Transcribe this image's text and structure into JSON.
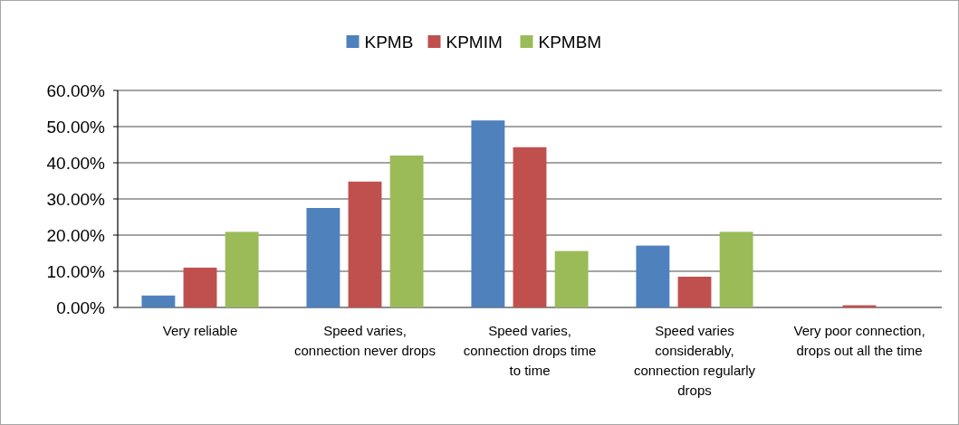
{
  "chart_data": {
    "type": "bar",
    "categories": [
      "Very reliable",
      "Speed varies, connection never drops",
      "Speed varies, connection drops time to time",
      "Speed varies considerably, connection regularly drops",
      "Very poor connection, drops out all the time"
    ],
    "series": [
      {
        "name": "KPMB",
        "color": "#4f81bd",
        "values": [
          3.3,
          27.5,
          51.7,
          17.1,
          0
        ]
      },
      {
        "name": "KPMIM",
        "color": "#c0504d",
        "values": [
          11.0,
          34.8,
          44.3,
          8.5,
          0.6
        ]
      },
      {
        "name": "KPMBM",
        "color": "#9bbb59",
        "values": [
          20.9,
          42.0,
          15.6,
          20.9,
          0
        ]
      }
    ],
    "ylim": [
      0,
      60
    ],
    "yticks": [
      {
        "value": 0,
        "label": "0.00%"
      },
      {
        "value": 10,
        "label": "10.00%"
      },
      {
        "value": 20,
        "label": "20.00%"
      },
      {
        "value": 30,
        "label": "30.00%"
      },
      {
        "value": 40,
        "label": "40.00%"
      },
      {
        "value": 50,
        "label": "50.00%"
      },
      {
        "value": 60,
        "label": "60.00%"
      }
    ],
    "grid": "y",
    "legend": "top"
  }
}
